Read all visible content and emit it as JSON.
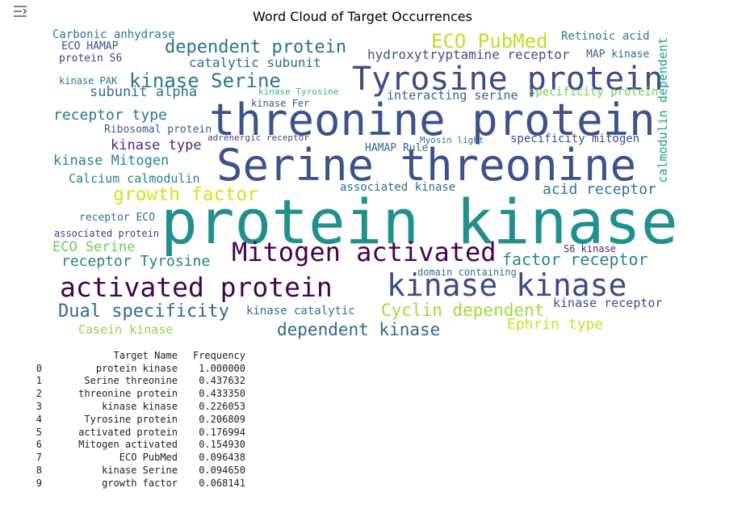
{
  "output_icon": "output-toggle-icon",
  "figure": {
    "title": "Word Cloud of Target Occurrences"
  },
  "cloud_words": [
    {
      "text": "protein kinase",
      "color": "#21908d"
    },
    {
      "text": "Serine threonine",
      "color": "#3b528b"
    },
    {
      "text": "threonine protein",
      "color": "#3b528b"
    },
    {
      "text": "Tyrosine protein",
      "color": "#3e4a89"
    },
    {
      "text": "kinase kinase",
      "color": "#3e4a89"
    },
    {
      "text": "activated protein",
      "color": "#440154"
    },
    {
      "text": "Mitogen activated",
      "color": "#440154"
    },
    {
      "text": "kinase Serine",
      "color": "#2a788e"
    },
    {
      "text": "ECO PubMed",
      "color": "#bddf26"
    },
    {
      "text": "dependent protein",
      "color": "#2c728e"
    },
    {
      "text": "growth factor",
      "color": "#d5e21a"
    },
    {
      "text": "Dual specificity",
      "color": "#31688e"
    },
    {
      "text": "dependent kinase",
      "color": "#31688e"
    },
    {
      "text": "Cyclin dependent",
      "color": "#a0da39"
    },
    {
      "text": "factor receptor",
      "color": "#25858e"
    },
    {
      "text": "receptor Tyrosine",
      "color": "#27808e"
    },
    {
      "text": "hydroxytryptamine receptor",
      "color": "#3b528b"
    },
    {
      "text": "Ephrin type",
      "color": "#c8e020"
    },
    {
      "text": "receptor type",
      "color": "#2a788e"
    },
    {
      "text": "catalytic subunit",
      "color": "#2d708e"
    },
    {
      "text": "Carbonic anhydrase",
      "color": "#2a788e"
    },
    {
      "text": "ECO Serine",
      "color": "#6ccd5a"
    },
    {
      "text": "Retinoic acid",
      "color": "#287c8e"
    },
    {
      "text": "subunit alpha",
      "color": "#2d708e"
    },
    {
      "text": "kinase type",
      "color": "#482878"
    },
    {
      "text": "kinase Mitogen",
      "color": "#25848e"
    },
    {
      "text": "Calcium calmodulin",
      "color": "#26828e"
    },
    {
      "text": "associated kinase",
      "color": "#2e6e8e"
    },
    {
      "text": "acid receptor",
      "color": "#2a788e"
    },
    {
      "text": "Casein kinase",
      "color": "#90d743"
    },
    {
      "text": "kinase receptor",
      "color": "#3e4c8a"
    },
    {
      "text": "kinase catalytic",
      "color": "#2c728e"
    },
    {
      "text": "interacting serine",
      "color": "#33638d"
    },
    {
      "text": "specificity protein",
      "color": "#6ece58"
    },
    {
      "text": "specificity mitogen",
      "color": "#3e4a89"
    },
    {
      "text": "receptor ECO",
      "color": "#2c728e"
    },
    {
      "text": "Ribosomal protein",
      "color": "#355f8d"
    },
    {
      "text": "HAMAP Rule",
      "color": "#31688e"
    },
    {
      "text": "ECO HAMAP",
      "color": "#3b528b"
    },
    {
      "text": "protein S6",
      "color": "#433d84"
    },
    {
      "text": "MAP kinase",
      "color": "#31688e"
    },
    {
      "text": "kinase PAK",
      "color": "#2c728e"
    },
    {
      "text": "kinase Fer",
      "color": "#3b528b"
    },
    {
      "text": "S6 kinase",
      "color": "#482677"
    },
    {
      "text": "associated protein",
      "color": "#453781"
    },
    {
      "text": "domain containing",
      "color": "#2e6d8e"
    },
    {
      "text": "calmodulin dependent",
      "color": "#1fa187"
    },
    {
      "text": "kinase Tyrosine",
      "color": "#35b779"
    },
    {
      "text": "adrenergic receptor",
      "color": "#3e4a89"
    },
    {
      "text": "Myosin light",
      "color": "#2c728e"
    }
  ],
  "dataframe": {
    "columns": [
      "Target Name",
      "Frequency"
    ],
    "rows": [
      {
        "index": "0",
        "name": "protein kinase",
        "freq": "1.000000"
      },
      {
        "index": "1",
        "name": "Serine threonine",
        "freq": "0.437632"
      },
      {
        "index": "2",
        "name": "threonine protein",
        "freq": "0.433350"
      },
      {
        "index": "3",
        "name": "kinase kinase",
        "freq": "0.226053"
      },
      {
        "index": "4",
        "name": "Tyrosine protein",
        "freq": "0.206809"
      },
      {
        "index": "5",
        "name": "activated protein",
        "freq": "0.176994"
      },
      {
        "index": "6",
        "name": "Mitogen activated",
        "freq": "0.154930"
      },
      {
        "index": "7",
        "name": "ECO PubMed",
        "freq": "0.096438"
      },
      {
        "index": "8",
        "name": "kinase Serine",
        "freq": "0.094650"
      },
      {
        "index": "9",
        "name": "growth factor",
        "freq": "0.068141"
      }
    ]
  }
}
